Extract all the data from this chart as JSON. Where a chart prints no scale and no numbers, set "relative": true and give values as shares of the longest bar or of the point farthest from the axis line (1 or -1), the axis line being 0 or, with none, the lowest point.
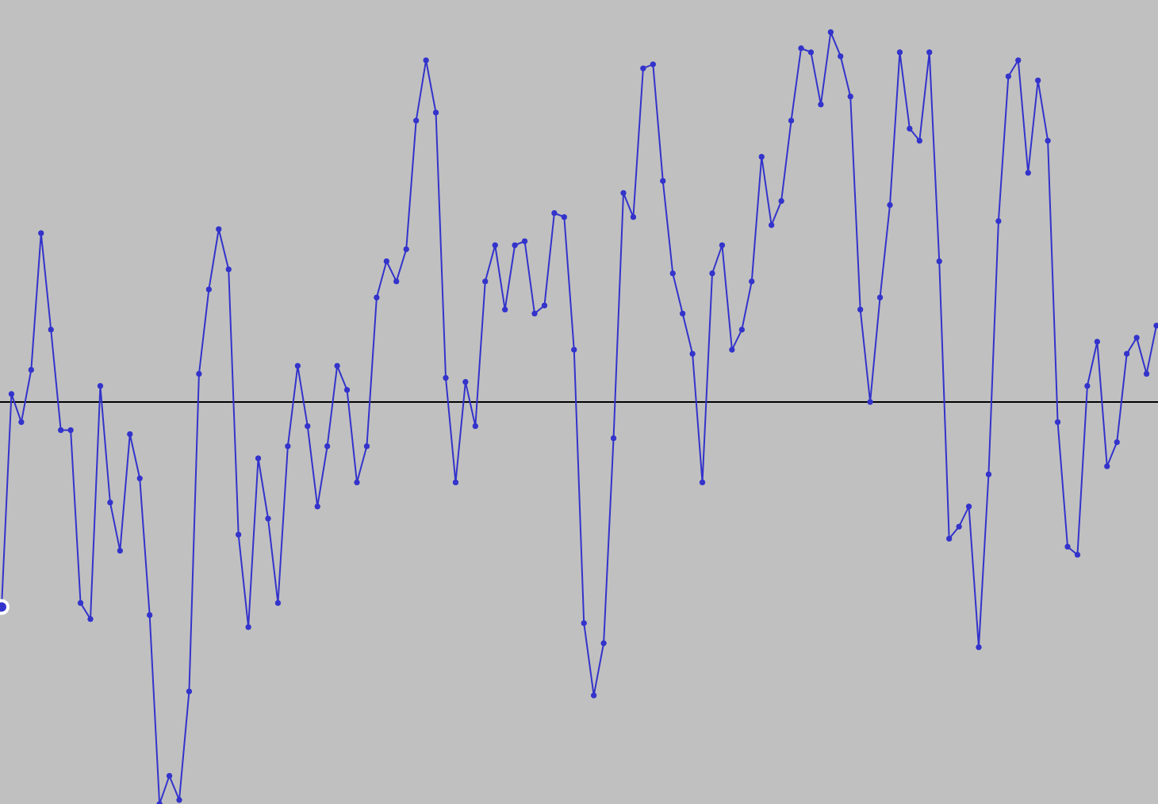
{
  "chart_data": {
    "type": "line",
    "relative": true,
    "marker": "circle",
    "line_style": "solid",
    "grid": false,
    "legend": false,
    "categories": [
      null,
      null,
      null,
      null,
      null,
      null,
      null,
      null,
      null,
      null,
      null,
      null,
      null,
      null,
      null,
      null,
      null,
      null,
      null,
      null,
      null,
      null,
      null,
      null,
      null,
      null,
      null,
      null,
      null,
      null,
      null,
      null,
      null,
      null,
      null,
      null,
      null,
      null,
      null,
      null,
      null,
      null,
      null,
      null,
      null,
      null,
      null,
      null,
      null,
      null,
      null,
      null,
      null,
      null,
      null,
      null,
      null,
      null,
      null,
      null,
      null,
      null,
      null,
      null,
      null,
      null,
      null,
      null,
      null,
      null,
      null,
      null,
      null,
      null,
      null,
      null,
      null,
      null,
      null,
      null,
      null,
      null,
      null,
      null,
      null,
      null,
      null,
      null,
      null,
      null,
      null,
      null,
      null,
      null,
      null,
      null,
      null,
      null,
      null,
      null,
      null,
      null,
      null,
      null,
      null,
      null,
      null,
      null,
      null,
      null,
      null,
      null,
      null,
      null,
      null,
      null,
      null,
      null
    ],
    "series": [
      {
        "color": "#3333cc",
        "values": [
          -0.51,
          0.02,
          -0.05,
          0.08,
          0.42,
          0.18,
          -0.07,
          -0.07,
          -0.5,
          -0.54,
          0.04,
          -0.25,
          -0.37,
          -0.08,
          -0.19,
          -0.53,
          -1,
          -0.93,
          -0.99,
          -0.72,
          0.07,
          0.28,
          0.43,
          0.33,
          -0.33,
          -0.56,
          -0.14,
          -0.29,
          -0.5,
          -0.11,
          0.09,
          -0.06,
          -0.26,
          -0.11,
          0.09,
          0.03,
          -0.2,
          -0.11,
          0.26,
          0.35,
          0.3,
          0.38,
          0.7,
          0.85,
          0.72,
          0.06,
          -0.2,
          0.05,
          -0.06,
          0.3,
          0.39,
          0.23,
          0.39,
          0.4,
          0.22,
          0.24,
          0.47,
          0.46,
          0.13,
          -0.55,
          -0.73,
          -0.6,
          -0.09,
          0.52,
          0.46,
          0.83,
          0.84,
          0.55,
          0.32,
          0.22,
          0.12,
          -0.2,
          0.32,
          0.39,
          0.13,
          0.18,
          0.3,
          0.61,
          0.44,
          0.5,
          0.7,
          0.88,
          0.87,
          0.74,
          0.92,
          0.86,
          0.76,
          0.23,
          0,
          0.26,
          0.49,
          0.87,
          0.68,
          0.65,
          0.87,
          0.35,
          -0.34,
          -0.31,
          -0.26,
          -0.61,
          -0.18,
          0.45,
          0.81,
          0.85,
          0.57,
          0.8,
          0.65,
          -0.05,
          -0.36,
          -0.38,
          0.04,
          0.15,
          -0.16,
          -0.1,
          0.12,
          0.16,
          0.07,
          0.19
        ]
      }
    ]
  }
}
